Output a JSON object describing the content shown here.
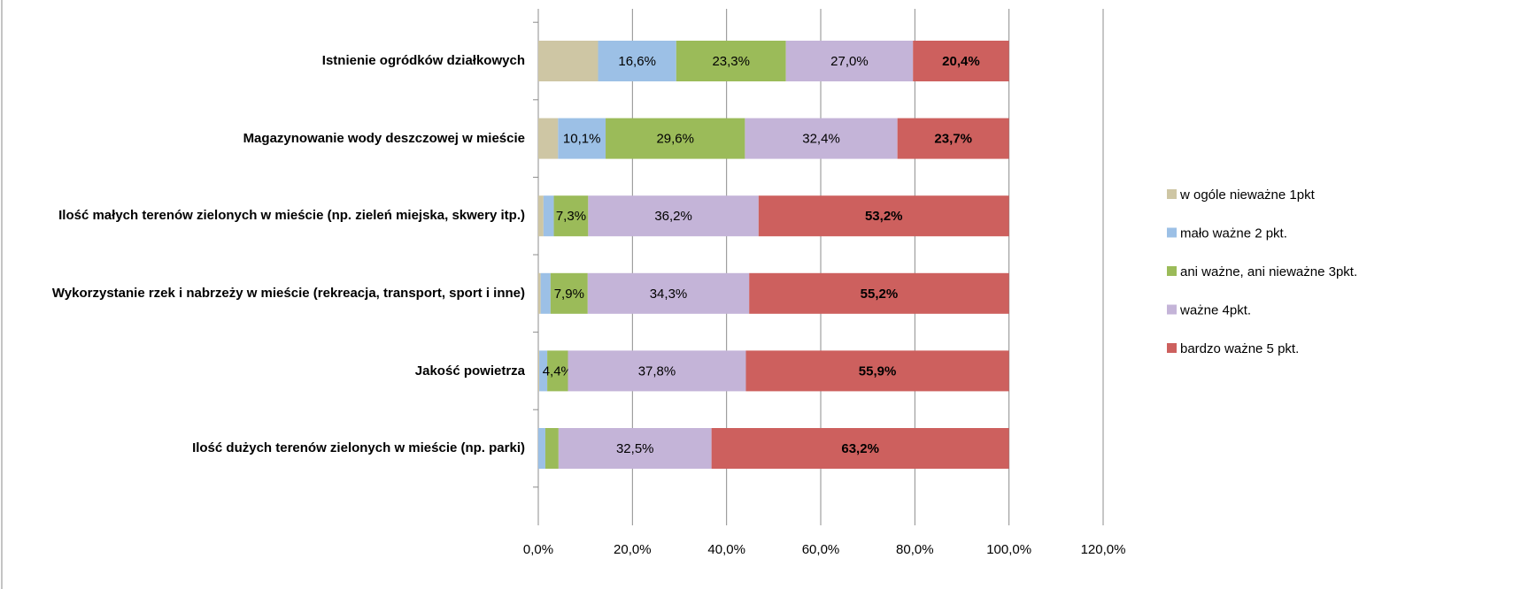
{
  "chart_data": {
    "type": "stacked_barh",
    "categories": [
      "Istnienie ogródków działkowych",
      "Magazynowanie wody deszczowej w mieście",
      "Ilość małych terenów zielonych w mieście (np. zieleń miejska, skwery itp.)",
      "Wykorzystanie rzek i nabrzeży w mieście (rekreacja, transport, sport i inne)",
      "Jakość powietrza",
      "Ilość dużych terenów zielonych w mieście (np. parki)"
    ],
    "series": [
      {
        "name": "w ogóle nieważne 1pkt",
        "color": "#cec6a4",
        "values": [
          12.7,
          4.2,
          1.1,
          0.5,
          0.2,
          0
        ],
        "value_labels": [
          null,
          null,
          null,
          null,
          null,
          null
        ]
      },
      {
        "name": "mało ważne 2 pkt.",
        "color": "#9cc0e6",
        "values": [
          16.6,
          10.1,
          2.2,
          2.1,
          1.7,
          1.5
        ],
        "value_labels": [
          "16,6%",
          "10,1%",
          null,
          null,
          null,
          null
        ]
      },
      {
        "name": "ani ważne, ani nieważne 3pkt.",
        "color": "#9bbb59",
        "values": [
          23.3,
          29.6,
          7.3,
          7.9,
          4.4,
          2.8
        ],
        "value_labels": [
          "23,3%",
          "29,6%",
          "7,3%",
          "7,9%",
          "4,4%",
          null
        ]
      },
      {
        "name": "ważne 4pkt.",
        "color": "#c4b4d8",
        "values": [
          27.0,
          32.4,
          36.2,
          34.3,
          37.8,
          32.5
        ],
        "value_labels": [
          "27,0%",
          "32,4%",
          "36,2%",
          "34,3%",
          "37,8%",
          "32,5%"
        ]
      },
      {
        "name": "bardzo ważne 5 pkt.",
        "color": "#cd605e",
        "values": [
          20.4,
          23.7,
          53.2,
          55.2,
          55.9,
          63.2
        ],
        "value_labels": [
          "20,4%",
          "23,7%",
          "53,2%",
          "55,2%",
          "55,9%",
          "63,2%"
        ]
      }
    ],
    "xlim": [
      0,
      120
    ],
    "xticks": [
      {
        "value": 0,
        "label": "0,0%"
      },
      {
        "value": 20,
        "label": "20,0%"
      },
      {
        "value": 40,
        "label": "40,0%"
      },
      {
        "value": 60,
        "label": "60,0%"
      },
      {
        "value": 80,
        "label": "80,0%"
      },
      {
        "value": 100,
        "label": "100,0%"
      },
      {
        "value": 120,
        "label": "120,0%"
      }
    ],
    "grid": true,
    "legend": "right"
  }
}
